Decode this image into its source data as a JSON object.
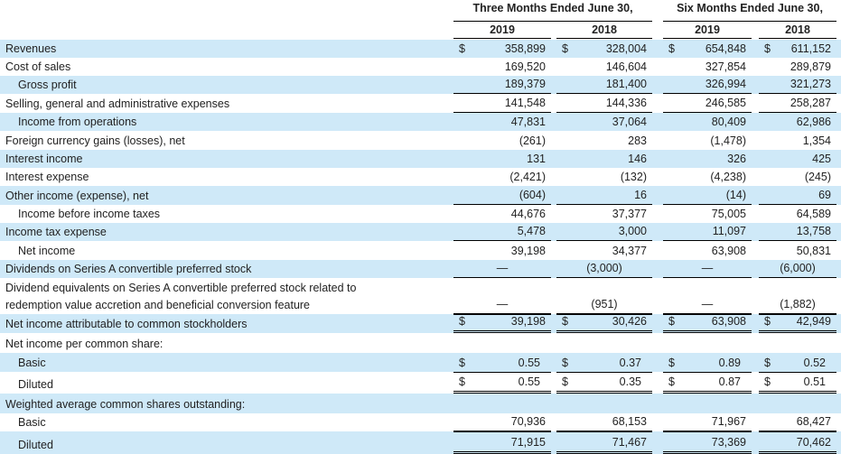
{
  "header": {
    "periods": [
      "Three Months Ended June 30,",
      "Six Months Ended June 30,"
    ],
    "years": [
      "2019",
      "2018",
      "2019",
      "2018"
    ]
  },
  "currency_symbol": "$",
  "rows": [
    {
      "label": "Revenues",
      "values": [
        "358,899",
        "328,004",
        "654,848",
        "611,152"
      ]
    },
    {
      "label": "Cost of sales",
      "values": [
        "169,520",
        "146,604",
        "327,854",
        "289,879"
      ]
    },
    {
      "label": "Gross profit",
      "values": [
        "189,379",
        "181,400",
        "326,994",
        "321,273"
      ]
    },
    {
      "label": "Selling, general and administrative expenses",
      "values": [
        "141,548",
        "144,336",
        "246,585",
        "258,287"
      ]
    },
    {
      "label": "Income from operations",
      "values": [
        "47,831",
        "37,064",
        "80,409",
        "62,986"
      ]
    },
    {
      "label": "Foreign currency gains (losses), net",
      "values": [
        "(261)",
        "283",
        "(1,478)",
        "1,354"
      ]
    },
    {
      "label": "Interest income",
      "values": [
        "131",
        "146",
        "326",
        "425"
      ]
    },
    {
      "label": "Interest expense",
      "values": [
        "(2,421)",
        "(132)",
        "(4,238)",
        "(245)"
      ]
    },
    {
      "label": "Other income (expense), net",
      "values": [
        "(604)",
        "16",
        "(14)",
        "69"
      ]
    },
    {
      "label": "Income before income taxes",
      "values": [
        "44,676",
        "37,377",
        "75,005",
        "64,589"
      ]
    },
    {
      "label": "Income tax expense",
      "values": [
        "5,478",
        "3,000",
        "11,097",
        "13,758"
      ]
    },
    {
      "label": "Net income",
      "values": [
        "39,198",
        "34,377",
        "63,908",
        "50,831"
      ]
    },
    {
      "label": "Dividends on Series A convertible preferred stock",
      "values": [
        "—",
        "(3,000)",
        "—",
        "(6,000)"
      ]
    },
    {
      "label_lines": [
        "Dividend equivalents on Series A convertible preferred stock related to",
        "redemption value accretion and beneficial conversion feature"
      ],
      "values": [
        "—",
        "(951)",
        "—",
        "(1,882)"
      ]
    },
    {
      "label": "Net income attributable to common stockholders",
      "values": [
        "39,198",
        "30,426",
        "63,908",
        "42,949"
      ]
    },
    {
      "label": "Net income per common share:"
    },
    {
      "label": "Basic",
      "values": [
        "0.55",
        "0.37",
        "0.89",
        "0.52"
      ]
    },
    {
      "label": "Diluted",
      "values": [
        "0.55",
        "0.35",
        "0.87",
        "0.51"
      ]
    },
    {
      "label": "Weighted average common shares outstanding:"
    },
    {
      "label": "Basic",
      "values": [
        "70,936",
        "68,153",
        "71,967",
        "68,427"
      ]
    },
    {
      "label": "Diluted",
      "values": [
        "71,915",
        "71,467",
        "73,369",
        "70,462"
      ]
    }
  ]
}
